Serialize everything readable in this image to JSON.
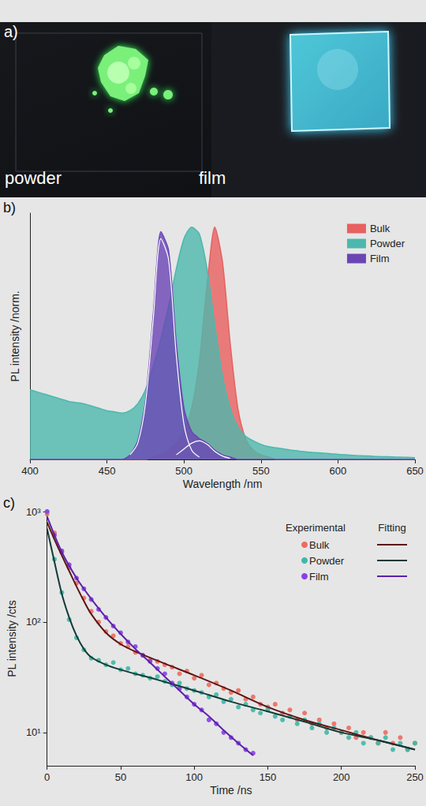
{
  "photo": {
    "label": "a)",
    "texts": [
      "powder",
      "film"
    ]
  },
  "chart_data": [
    {
      "label": "b)",
      "type": "area",
      "xlabel": "Wavelength /nm",
      "ylabel": "PL intensity /norm.",
      "xlim": [
        400,
        650
      ],
      "xticks": [
        400,
        450,
        500,
        550,
        600,
        650
      ],
      "ylim": [
        0,
        1.06
      ],
      "tick_labels": "x",
      "legend": "upper right",
      "x": [
        400,
        405,
        410,
        415,
        420,
        425,
        430,
        435,
        440,
        445,
        450,
        455,
        460,
        465,
        470,
        475,
        480,
        485,
        490,
        495,
        500,
        505,
        510,
        515,
        520,
        525,
        530,
        535,
        540,
        545,
        550,
        555,
        560,
        565,
        570,
        575,
        580,
        585,
        590,
        595,
        600,
        605,
        610,
        615,
        620,
        625,
        630,
        635,
        640,
        645,
        650
      ],
      "series": [
        {
          "name": "Bulk",
          "color": "#e8605f",
          "values": [
            0,
            0,
            0,
            0,
            0,
            0,
            0,
            0,
            0,
            0,
            0,
            0,
            0,
            0,
            0,
            0,
            0.01,
            0.02,
            0.04,
            0.07,
            0.12,
            0.22,
            0.42,
            0.75,
            1.0,
            0.85,
            0.5,
            0.22,
            0.09,
            0.04,
            0.02,
            0.01,
            0,
            0,
            0,
            0,
            0,
            0,
            0,
            0,
            0,
            0,
            0,
            0,
            0,
            0,
            0,
            0,
            0,
            0,
            0
          ]
        },
        {
          "name": "Powder",
          "color": "#4db8ad",
          "values": [
            0.3,
            0.29,
            0.28,
            0.27,
            0.26,
            0.25,
            0.245,
            0.24,
            0.23,
            0.22,
            0.21,
            0.205,
            0.2,
            0.21,
            0.24,
            0.3,
            0.4,
            0.52,
            0.66,
            0.82,
            0.95,
            1.0,
            0.97,
            0.82,
            0.58,
            0.36,
            0.22,
            0.14,
            0.1,
            0.08,
            0.065,
            0.055,
            0.05,
            0.045,
            0.04,
            0.036,
            0.032,
            0.03,
            0.027,
            0.025,
            0.022,
            0.02,
            0.018,
            0.016,
            0.015,
            0.013,
            0.012,
            0.011,
            0.01,
            0.009,
            0.008
          ]
        },
        {
          "name": "Film",
          "color": "#6a45b5",
          "values": [
            0,
            0,
            0,
            0,
            0,
            0,
            0,
            0,
            0,
            0,
            0,
            0,
            0,
            0.02,
            0.08,
            0.25,
            0.62,
            0.98,
            0.9,
            0.5,
            0.22,
            0.12,
            0.09,
            0.07,
            0.04,
            0.02,
            0.01,
            0,
            0,
            0,
            0,
            0,
            0,
            0,
            0,
            0,
            0,
            0,
            0,
            0,
            0,
            0,
            0,
            0,
            0,
            0,
            0,
            0,
            0,
            0,
            0
          ]
        }
      ],
      "fits": [
        {
          "color": "#ffffff",
          "x": [
            465,
            470,
            475,
            480,
            485,
            490,
            495,
            500,
            505,
            510
          ],
          "values": [
            0.02,
            0.07,
            0.24,
            0.6,
            0.95,
            0.86,
            0.45,
            0.15,
            0.04,
            0.01
          ]
        },
        {
          "color": "#ffffff",
          "x": [
            495,
            500,
            505,
            510,
            515,
            520,
            525,
            530
          ],
          "values": [
            0.02,
            0.045,
            0.07,
            0.08,
            0.065,
            0.035,
            0.015,
            0.005
          ]
        }
      ]
    },
    {
      "label": "c)",
      "type": "scatter",
      "log": "y",
      "xlabel": "Time /ns",
      "ylabel": "PL intensity /cts",
      "xlim": [
        0,
        250
      ],
      "xticks": [
        0,
        50,
        100,
        150,
        200,
        250
      ],
      "ylim": [
        5,
        1000
      ],
      "yticks": [
        {
          "value": 10,
          "label": "10¹"
        },
        {
          "value": 100,
          "label": "10²"
        },
        {
          "value": 1000,
          "label": "10³"
        }
      ],
      "legend": "upper right",
      "legend_headers": [
        "Experimental",
        "Fitting"
      ],
      "series": [
        {
          "name": "Bulk",
          "color": "#ee6a5f",
          "marker": "circle",
          "x": [
            0,
            5,
            10,
            15,
            20,
            25,
            30,
            35,
            40,
            45,
            50,
            55,
            60,
            65,
            70,
            75,
            80,
            85,
            90,
            95,
            100,
            105,
            110,
            115,
            120,
            125,
            130,
            135,
            140,
            145,
            150,
            155,
            160,
            165,
            170,
            175,
            180,
            185,
            190,
            195,
            200,
            205,
            210,
            215,
            220,
            225,
            230,
            235,
            240,
            245,
            250
          ],
          "values": [
            950,
            640,
            430,
            310,
            225,
            165,
            125,
            100,
            82,
            75,
            64,
            60,
            53,
            50,
            45,
            44,
            41,
            39,
            34,
            36,
            31,
            33,
            27,
            28,
            25,
            23,
            24,
            20,
            21,
            18,
            17,
            18,
            15,
            16,
            13,
            15,
            12,
            13,
            11,
            12,
            10,
            11,
            9,
            10,
            9,
            8,
            10,
            8,
            9,
            7,
            8
          ],
          "fit": {
            "color": "#5c1414",
            "line_style": "solid",
            "x": [
              0,
              5,
              10,
              15,
              20,
              25,
              30,
              40,
              50,
              60,
              80,
              100,
              125,
              150,
              175,
              200,
              225,
              250
            ],
            "values": [
              800,
              560,
              400,
              290,
              210,
              155,
              118,
              80,
              63,
              54,
              42,
              33,
              24,
              17,
              13,
              10.5,
              8.5,
              7
            ]
          }
        },
        {
          "name": "Powder",
          "color": "#3fb8a6",
          "marker": "circle",
          "x": [
            0,
            5,
            10,
            15,
            20,
            25,
            30,
            35,
            40,
            45,
            50,
            55,
            60,
            65,
            70,
            75,
            80,
            85,
            90,
            95,
            100,
            105,
            110,
            115,
            120,
            125,
            130,
            135,
            140,
            145,
            150,
            155,
            160,
            165,
            170,
            175,
            180,
            185,
            190,
            195,
            200,
            205,
            210,
            215,
            220,
            225,
            230,
            235,
            240,
            245,
            250
          ],
          "values": [
            1000,
            370,
            185,
            105,
            72,
            56,
            47,
            45,
            41,
            43,
            37,
            38,
            34,
            33,
            31,
            32,
            29,
            27,
            28,
            25,
            24,
            23,
            21,
            22,
            19,
            20,
            17,
            18,
            16,
            15,
            16,
            14,
            13,
            14,
            12,
            13,
            11,
            12,
            10,
            11,
            10,
            9,
            10,
            8,
            9,
            8,
            9,
            7,
            8,
            7,
            8
          ],
          "fit": {
            "color": "#143a36",
            "line_style": "solid",
            "x": [
              0,
              5,
              10,
              15,
              20,
              25,
              30,
              40,
              50,
              75,
              100,
              125,
              150,
              175,
              200,
              225,
              250
            ],
            "values": [
              700,
              350,
              180,
              110,
              75,
              57,
              48,
              41,
              37,
              30,
              24,
              19,
              15.5,
              12.5,
              10,
              8.5,
              7
            ]
          }
        },
        {
          "name": "Film",
          "color": "#8a3ee8",
          "marker": "circle",
          "x": [
            0,
            5,
            10,
            15,
            20,
            25,
            30,
            35,
            40,
            45,
            50,
            55,
            60,
            65,
            70,
            75,
            80,
            85,
            90,
            95,
            100,
            105,
            110,
            115,
            120,
            125,
            130,
            135,
            140
          ],
          "values": [
            1000,
            610,
            440,
            330,
            250,
            200,
            160,
            130,
            110,
            92,
            80,
            66,
            60,
            50,
            44,
            38,
            34,
            28,
            25,
            21,
            18,
            16,
            13,
            12,
            10,
            9,
            8,
            7,
            6.5
          ],
          "fit": {
            "color": "#5a22a8",
            "line_style": "solid",
            "x": [
              0,
              10,
              20,
              30,
              40,
              50,
              60,
              70,
              80,
              90,
              100,
              110,
              120,
              130,
              140
            ],
            "values": [
              900,
              430,
              250,
              162,
              110,
              78,
              57,
              43,
              32,
              24,
              18,
              14,
              10.5,
              8,
              6.2
            ]
          }
        }
      ]
    }
  ]
}
